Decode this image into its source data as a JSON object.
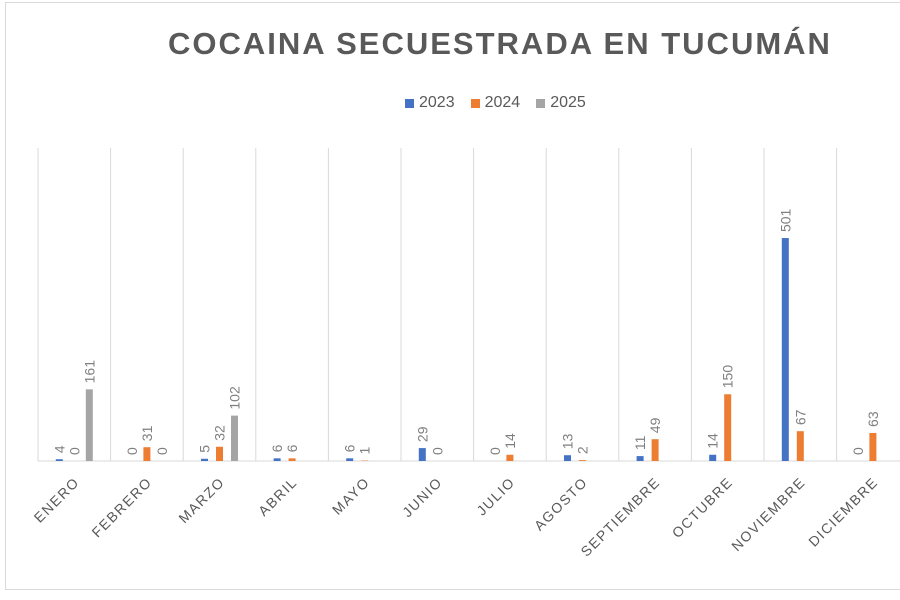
{
  "chart_data": {
    "type": "bar",
    "title": "COCAINA SECUESTRADA EN TUCUMÁN",
    "categories": [
      "ENERO",
      "FEBRERO",
      "MARZO",
      "ABRIL",
      "MAYO",
      "JUNIO",
      "JULIO",
      "AGOSTO",
      "SEPTIEMBRE",
      "OCTUBRE",
      "NOVIEMBRE",
      "DICIEMBRE"
    ],
    "series": [
      {
        "name": "2023",
        "color": "#4472c4",
        "values": [
          4,
          0,
          5,
          6,
          6,
          29,
          0,
          13,
          11,
          14,
          501,
          0
        ]
      },
      {
        "name": "2024",
        "color": "#ed7d31",
        "values": [
          0,
          31,
          32,
          6,
          1,
          0,
          14,
          2,
          49,
          150,
          67,
          63
        ]
      },
      {
        "name": "2025",
        "color": "#a5a5a5",
        "values": [
          161,
          0,
          102,
          null,
          null,
          null,
          null,
          null,
          null,
          null,
          null,
          null
        ]
      }
    ],
    "ylim": [
      0,
      560
    ],
    "grid": "vertical category lines",
    "legend": "top",
    "data_labels": true
  }
}
